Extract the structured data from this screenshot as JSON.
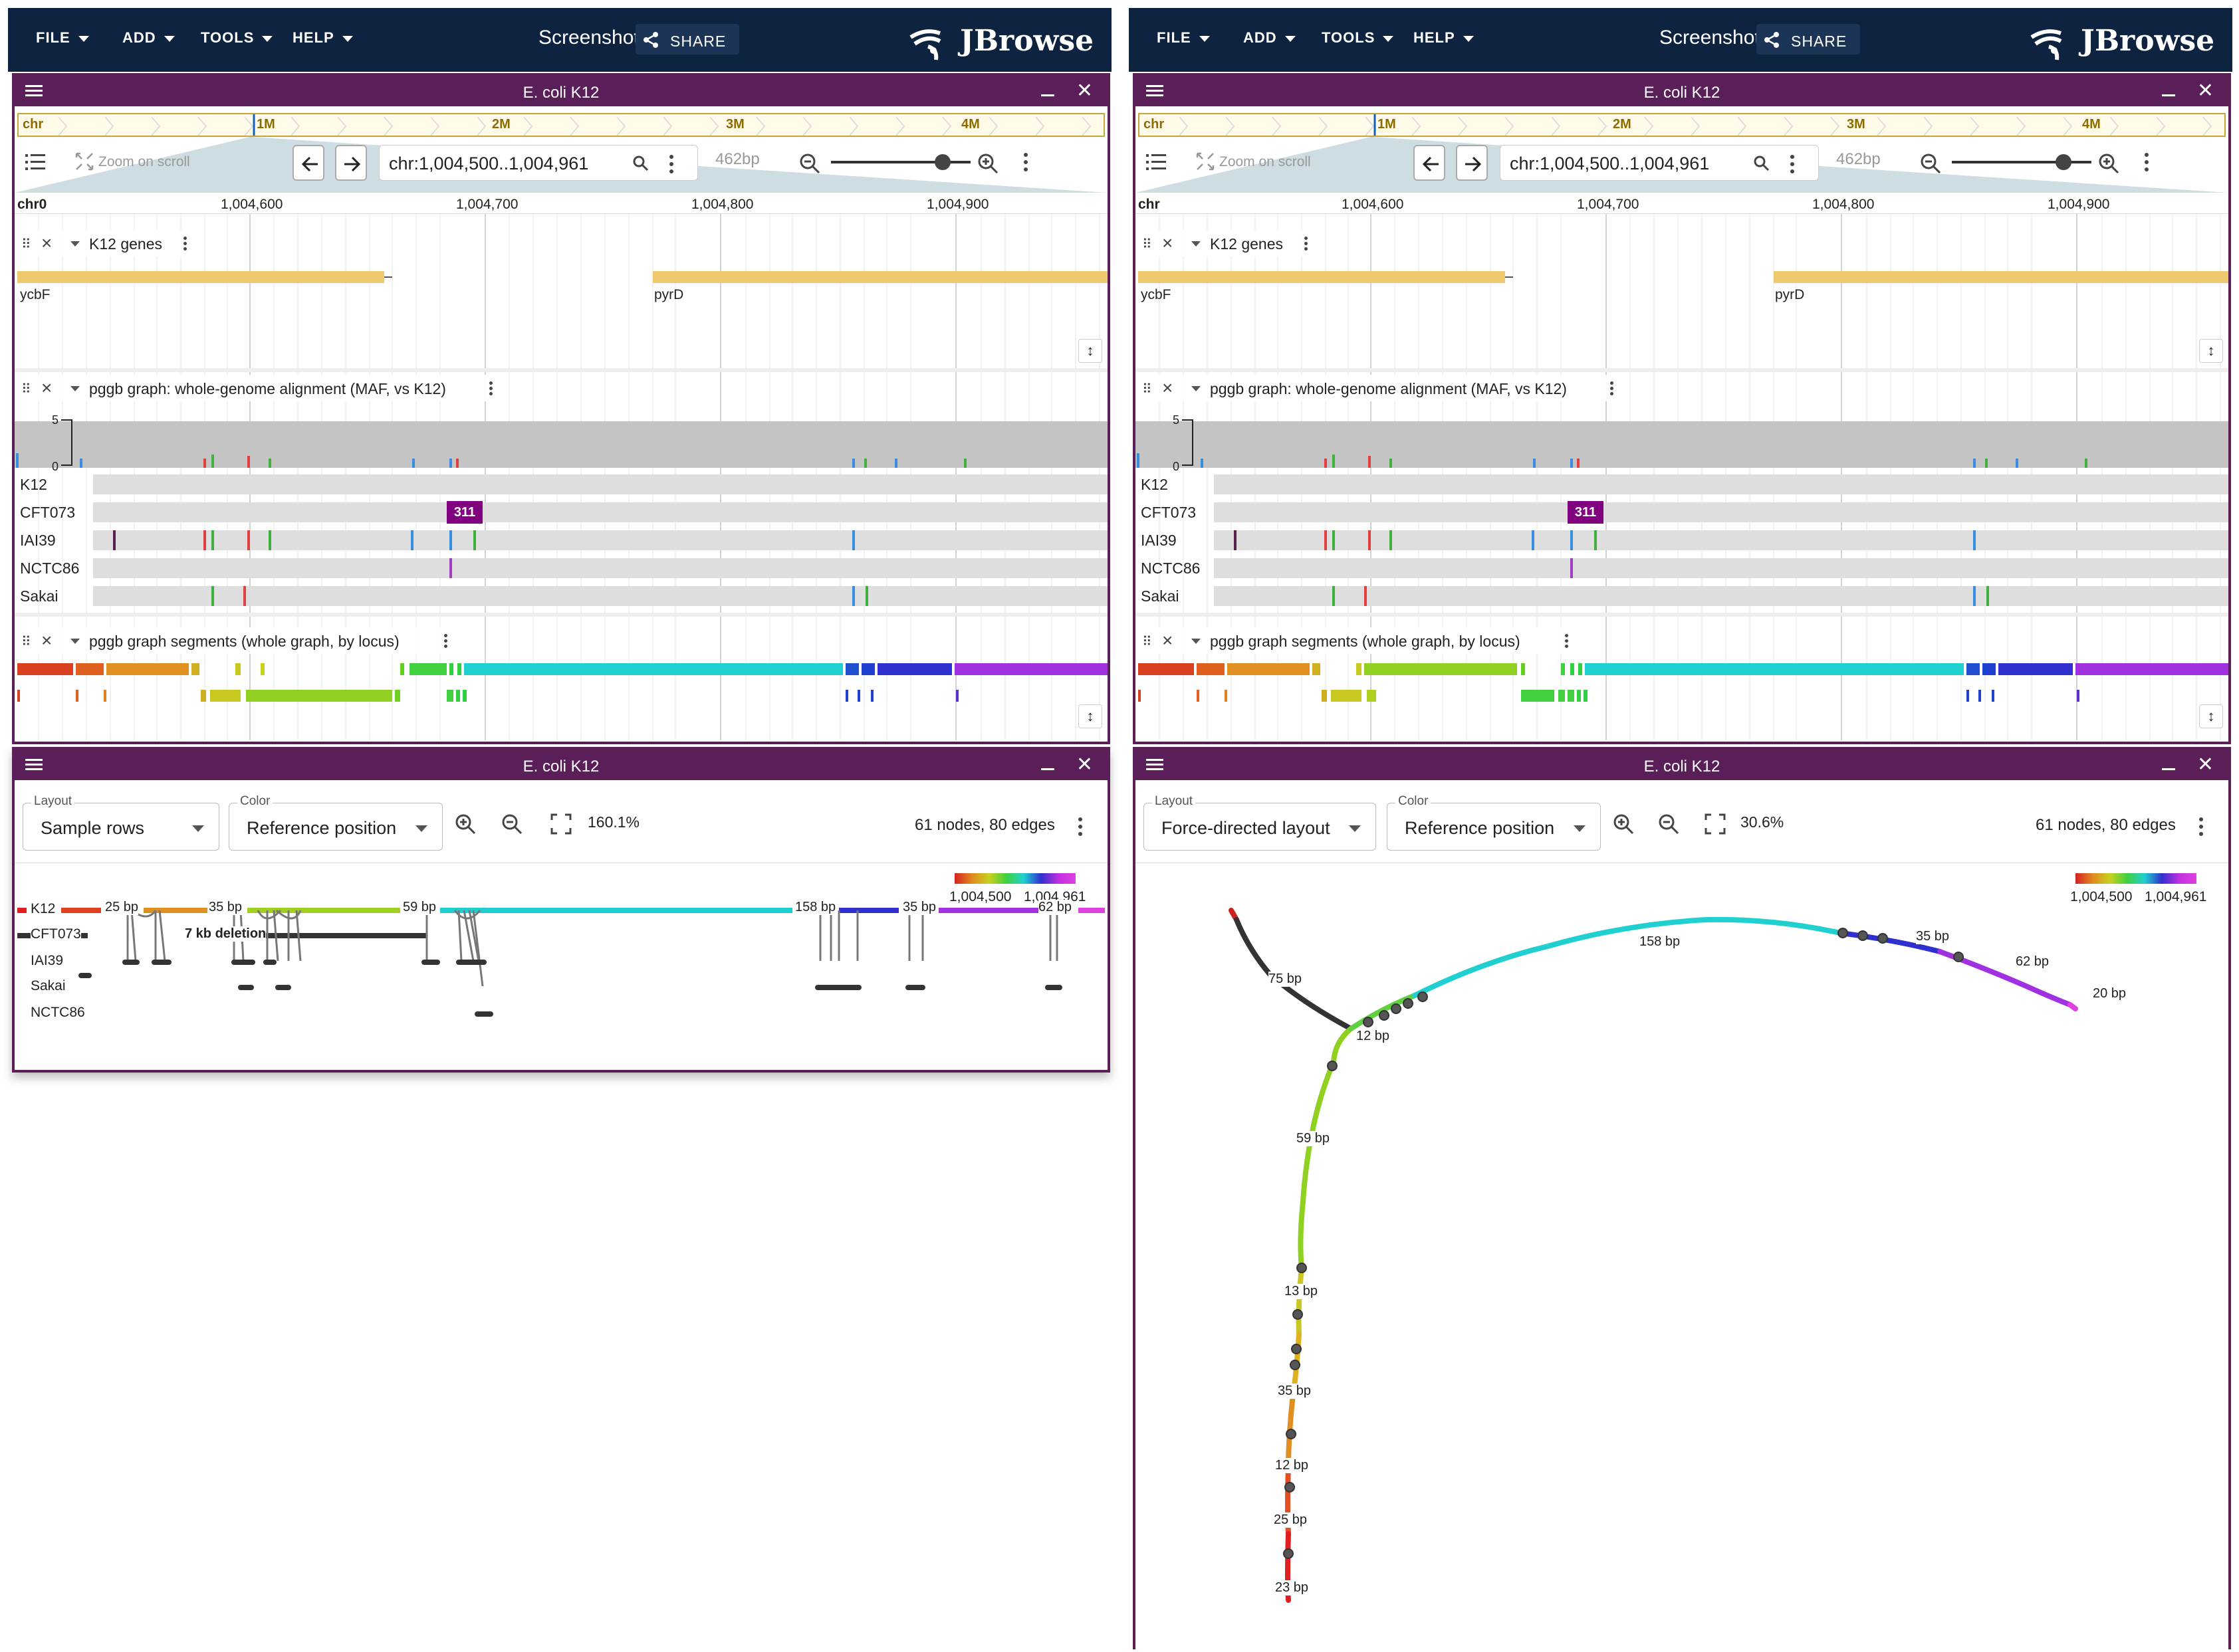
{
  "app": {
    "menus": [
      "FILE",
      "ADD",
      "TOOLS",
      "HELP"
    ],
    "screenshot_label": "Screenshot",
    "share_label": "SHARE",
    "brand": "JBrowse"
  },
  "linear_view": {
    "title": "E. coli K12",
    "overview_labels": [
      "chr",
      "1M",
      "2M",
      "3M",
      "4M"
    ],
    "zoom_on_scroll": "Zoom on scroll",
    "locstring": "chr:1,004,500..1,004,961",
    "bp_label": "462bp",
    "ruler_chr_left": "chr0",
    "ruler_chr_right": "chr",
    "ruler_ticks": [
      "1,004,600",
      "1,004,700",
      "1,004,800",
      "1,004,900"
    ],
    "tracks": {
      "genes": {
        "label": "K12 genes",
        "features": [
          "ycbF",
          "pyrD"
        ]
      },
      "maf": {
        "label": "pggb graph: whole-genome alignment (MAF, vs K12)",
        "axis": [
          "5",
          "0"
        ],
        "samples": [
          "K12",
          "CFT073",
          "IAI39",
          "NCTC86",
          "Sakai"
        ],
        "badge": "311"
      },
      "segments": {
        "label": "pggb graph segments (whole graph, by locus)"
      }
    }
  },
  "graph_views": [
    {
      "title": "E. coli K12",
      "layout_label": "Layout",
      "layout_value": "Sample rows",
      "color_label": "Color",
      "color_value": "Reference position",
      "zoom_pct": "160.1%",
      "counts": "61 nodes, 80 edges",
      "legend": [
        "1,004,500",
        "1,004,961"
      ],
      "samples": [
        "K12",
        "CFT073",
        "IAI39",
        "Sakai",
        "NCTC86"
      ],
      "node_labels": [
        "25 bp",
        "35 bp",
        "59 bp",
        "158 bp",
        "35 bp",
        "62 bp"
      ],
      "deletion_label": "7 kb deletion"
    },
    {
      "title": "E. coli K12",
      "layout_label": "Layout",
      "layout_value": "Force-directed layout",
      "color_label": "Color",
      "color_value": "Reference position",
      "zoom_pct": "30.6%",
      "counts": "61 nodes, 80 edges",
      "legend": [
        "1,004,500",
        "1,004,961"
      ],
      "node_labels": [
        "75 bp",
        "12 bp",
        "158 bp",
        "35 bp",
        "62 bp",
        "20 bp",
        "59 bp",
        "13 bp",
        "35 bp",
        "12 bp",
        "25 bp",
        "23 bp"
      ]
    }
  ],
  "colors": {
    "header": "#0d233f",
    "view_border": "#5a1e58",
    "gene": "#f0c870",
    "badge": "#800080"
  }
}
